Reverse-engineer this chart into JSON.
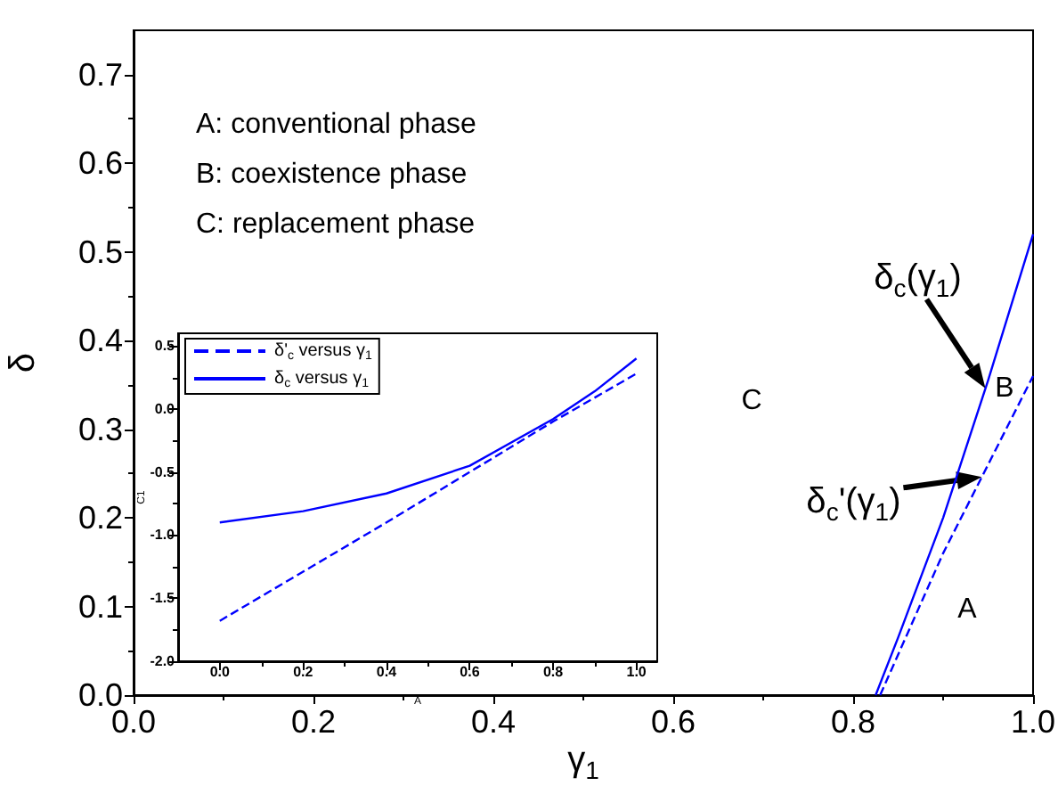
{
  "chart_data": [
    {
      "type": "line",
      "xlabel": "γ$_{1}$",
      "ylabel": "δ",
      "xlim": [
        0,
        1
      ],
      "ylim": [
        0,
        0.75
      ],
      "xticks": [
        {
          "value": 0,
          "label": "0.0"
        },
        {
          "value": 0.2,
          "label": "0.2"
        },
        {
          "value": 0.4,
          "label": "0.4"
        },
        {
          "value": 0.6,
          "label": "0.6"
        },
        {
          "value": 0.8,
          "label": "0.8"
        },
        {
          "value": 1,
          "label": "1.0"
        }
      ],
      "yticks": [
        {
          "value": 0,
          "label": "0.0"
        },
        {
          "value": 0.1,
          "label": "0.1"
        },
        {
          "value": 0.2,
          "label": "0.2"
        },
        {
          "value": 0.3,
          "label": "0.3"
        },
        {
          "value": 0.4,
          "label": "0.4"
        },
        {
          "value": 0.5,
          "label": "0.5"
        },
        {
          "value": 0.6,
          "label": "0.6"
        },
        {
          "value": 0.7,
          "label": "0.7"
        }
      ],
      "marker": "none",
      "series": [
        {
          "color": "#0000ff",
          "x": [
            0.825,
            0.85,
            0.9,
            0.95,
            1.0
          ],
          "values": [
            0,
            0.065,
            0.2,
            0.355,
            0.52
          ]
        },
        {
          "color": "#0000ff",
          "line_style": "dashed",
          "x": [
            0.83,
            0.9,
            0.95,
            1.0
          ],
          "values": [
            0,
            0.16,
            0.26,
            0.36
          ]
        }
      ],
      "annotations": [
        "A: conventional phase",
        "B: coexistence phase",
        "C: replacement phase",
        "C",
        "B",
        "A",
        {
          "text": "δ$_{c}$(γ$_{1}$)",
          "x": 0.947,
          "y": 0.346
        },
        {
          "text": "δ$_{c}$'(γ$_{1}$)",
          "x": 0.943,
          "y": 0.246
        }
      ]
    },
    {
      "type": "line",
      "xlabel": "A",
      "ylabel": "C1",
      "xlim": [
        -0.1,
        1.05
      ],
      "ylim": [
        -2.0,
        0.6
      ],
      "xticks": [
        {
          "value": 0,
          "label": "0.0"
        },
        {
          "value": 0.2,
          "label": "0.2"
        },
        {
          "value": 0.4,
          "label": "0.4"
        },
        {
          "value": 0.6,
          "label": "0.6"
        },
        {
          "value": 0.8,
          "label": "0.8"
        },
        {
          "value": 1,
          "label": "1.0"
        }
      ],
      "yticks": [
        {
          "value": -2,
          "label": "-2.0"
        },
        {
          "value": -1.5,
          "label": "-1.5"
        },
        {
          "value": -1,
          "label": "-1.0"
        },
        {
          "value": -0.5,
          "label": "-0.5"
        },
        {
          "value": 0,
          "label": "0.0"
        },
        {
          "value": 0.5,
          "label": "0.5"
        }
      ],
      "marker": "none",
      "legend": "top left",
      "series": [
        {
          "name": "δ'$_{c}$ versus γ$_{1}$",
          "color": "#0000ff",
          "line_style": "dashed",
          "x": [
            0,
            0.2,
            0.4,
            0.6,
            0.8,
            1.0
          ],
          "values": [
            -1.68,
            -1.29,
            -0.9,
            -0.5,
            -0.1,
            0.28
          ]
        },
        {
          "name": "δ$_{c}$ versus γ$_{1}$",
          "color": "#0000ff",
          "x": [
            0,
            0.2,
            0.4,
            0.6,
            0.8,
            0.9,
            1.0
          ],
          "values": [
            -0.9,
            -0.81,
            -0.67,
            -0.45,
            -0.08,
            0.14,
            0.4
          ]
        }
      ]
    }
  ]
}
